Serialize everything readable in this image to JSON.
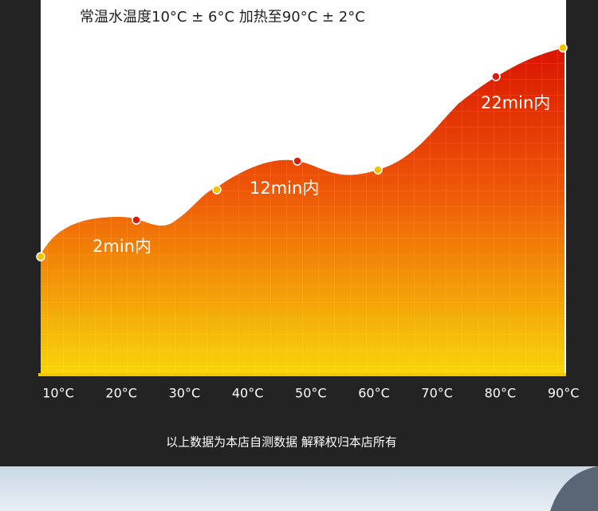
{
  "header": {
    "title": "常温水温度10°C ± 6°C 加热至90°C ± 2°C"
  },
  "axis": {
    "labels": [
      "10°C",
      "20°C",
      "30°C",
      "40°C",
      "50°C",
      "60°C",
      "70°C",
      "80°C",
      "90°C"
    ]
  },
  "annotations": [
    "2min内",
    "12min内",
    "22min内"
  ],
  "footer": {
    "note": "以上数据为本店自测数据  解释权归本店所有"
  }
}
